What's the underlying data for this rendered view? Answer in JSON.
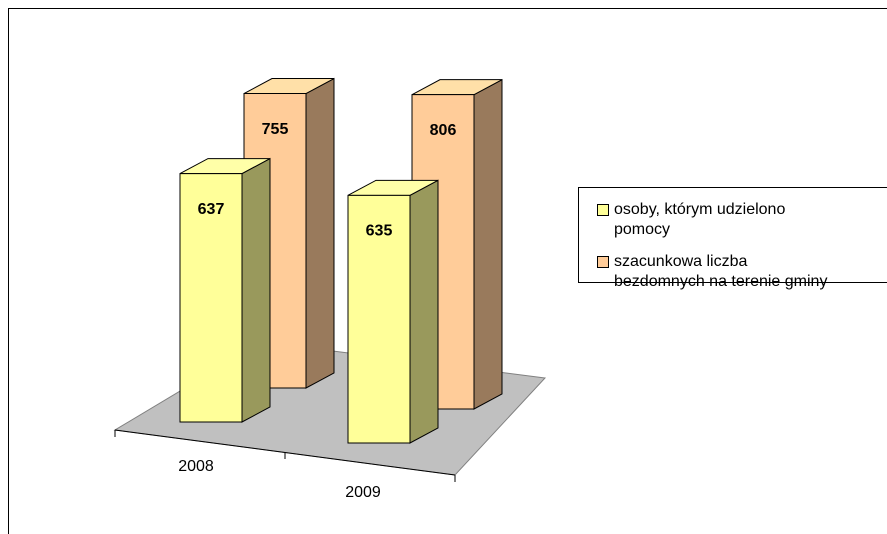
{
  "chart_data": {
    "type": "bar3d",
    "categories": [
      "2008",
      "2009"
    ],
    "series": [
      {
        "name": "osoby, którym udzielono pomocy",
        "color": "#ffff99",
        "values": [
          637,
          635
        ]
      },
      {
        "name": "szacunkowa liczba bezdomnych na terenie gminy",
        "color": "#ffcc99",
        "values": [
          755,
          806
        ]
      }
    ],
    "legend": "right"
  }
}
